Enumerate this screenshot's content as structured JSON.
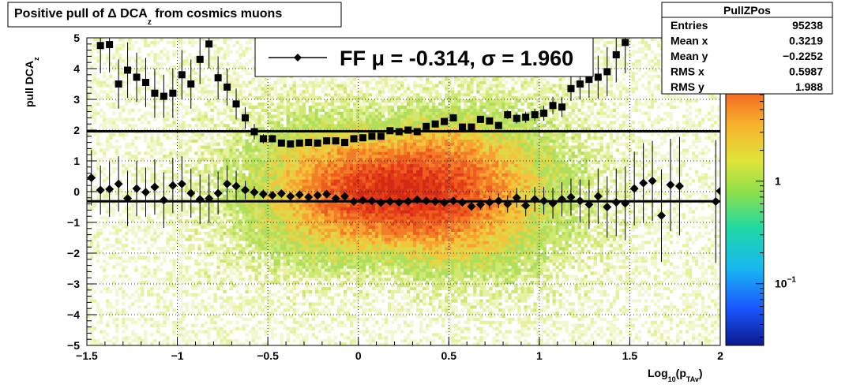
{
  "chart_data": {
    "type": "heatmap",
    "title": "Positive pull of Δ DCA",
    "title_sub": "z",
    "title_suffix": " from cosmics muons",
    "xlabel": "Log",
    "xlabel_sub1": "10",
    "xlabel_paren": "(p",
    "xlabel_sub2": "TAv",
    "xlabel_close": ")",
    "ylabel": "pull DCA",
    "ylabel_sub": "z",
    "xlim": [
      -1.5,
      2
    ],
    "ylim": [
      -5,
      5
    ],
    "x_ticks": [
      {
        "v": -1.5,
        "label": "−1.5"
      },
      {
        "v": -1,
        "label": "−1"
      },
      {
        "v": -0.5,
        "label": "−0.5"
      },
      {
        "v": 0,
        "label": "0"
      },
      {
        "v": 0.5,
        "label": "0.5"
      },
      {
        "v": 1,
        "label": "1"
      },
      {
        "v": 1.5,
        "label": "1.5"
      },
      {
        "v": 2,
        "label": "2"
      }
    ],
    "y_ticks": [
      {
        "v": 5,
        "label": "5"
      },
      {
        "v": 4,
        "label": "4"
      },
      {
        "v": 3,
        "label": "3"
      },
      {
        "v": 2,
        "label": "2"
      },
      {
        "v": 1,
        "label": "1"
      },
      {
        "v": 0,
        "label": "0"
      },
      {
        "v": -1,
        "label": "−1"
      },
      {
        "v": -2,
        "label": "−2"
      },
      {
        "v": -3,
        "label": "−3"
      },
      {
        "v": -4,
        "label": "−4"
      },
      {
        "v": -5,
        "label": "−5"
      }
    ],
    "colorbar": {
      "scale": "log",
      "range": [
        0.025,
        25
      ],
      "tick_labels": [
        {
          "v": 1,
          "label": "1"
        },
        {
          "v": 0.1,
          "label": "10",
          "sup": "−1"
        }
      ]
    },
    "legend": {
      "text_main": "FF μ = -0.314, σ =   1.960",
      "placement": "top-center"
    },
    "stats_box": {
      "title": "PullZPos",
      "rows": [
        {
          "label": "Entries",
          "value": "95238"
        },
        {
          "label": "Mean x",
          "value": "0.3219"
        },
        {
          "label": "Mean y",
          "value": "−0.2252"
        },
        {
          "label": "RMS x",
          "value": "0.5987"
        },
        {
          "label": "RMS y",
          "value": "1.988"
        }
      ]
    },
    "fit_lines": [
      {
        "name": "mean",
        "y": -0.314
      },
      {
        "name": "sigma",
        "y": 1.96
      }
    ],
    "series": [
      {
        "name": "mean",
        "marker": "diamond",
        "points": [
          [
            -1.475,
            0.45,
            0.9
          ],
          [
            -1.425,
            0.05,
            0.8
          ],
          [
            -1.375,
            0.08,
            0.9
          ],
          [
            -1.325,
            0.25,
            0.9
          ],
          [
            -1.275,
            -0.22,
            0.9
          ],
          [
            -1.225,
            0.1,
            0.9
          ],
          [
            -1.175,
            -0.02,
            0.8
          ],
          [
            -1.125,
            0.15,
            0.9
          ],
          [
            -1.075,
            -0.28,
            0.9
          ],
          [
            -1.025,
            0.2,
            0.9
          ],
          [
            -0.975,
            0.25,
            0.9
          ],
          [
            -0.925,
            -0.05,
            0.8
          ],
          [
            -0.875,
            -0.25,
            0.8
          ],
          [
            -0.825,
            -0.22,
            0.8
          ],
          [
            -0.775,
            -0.05,
            0.7
          ],
          [
            -0.725,
            0.25,
            0.6
          ],
          [
            -0.675,
            0.18,
            0.5
          ],
          [
            -0.625,
            0.05,
            0.3
          ],
          [
            -0.575,
            -0.02,
            0.2
          ],
          [
            -0.525,
            -0.08,
            0.15
          ],
          [
            -0.475,
            -0.12,
            0.12
          ],
          [
            -0.425,
            -0.06,
            0.1
          ],
          [
            -0.375,
            -0.15,
            0.1
          ],
          [
            -0.325,
            -0.1,
            0.08
          ],
          [
            -0.275,
            -0.18,
            0.07
          ],
          [
            -0.225,
            -0.12,
            0.07
          ],
          [
            -0.175,
            -0.08,
            0.06
          ],
          [
            -0.125,
            -0.22,
            0.06
          ],
          [
            -0.075,
            -0.15,
            0.05
          ],
          [
            -0.025,
            -0.32,
            0.05
          ],
          [
            0.025,
            -0.28,
            0.05
          ],
          [
            0.075,
            -0.3,
            0.05
          ],
          [
            0.125,
            -0.36,
            0.05
          ],
          [
            0.175,
            -0.32,
            0.05
          ],
          [
            0.225,
            -0.35,
            0.05
          ],
          [
            0.275,
            -0.32,
            0.06
          ],
          [
            0.325,
            -0.26,
            0.06
          ],
          [
            0.375,
            -0.3,
            0.07
          ],
          [
            0.425,
            -0.32,
            0.08
          ],
          [
            0.475,
            -0.36,
            0.09
          ],
          [
            0.525,
            -0.3,
            0.1
          ],
          [
            0.575,
            -0.35,
            0.12
          ],
          [
            0.625,
            -0.48,
            0.14
          ],
          [
            0.675,
            -0.42,
            0.16
          ],
          [
            0.725,
            -0.35,
            0.2
          ],
          [
            0.775,
            -0.3,
            0.24
          ],
          [
            0.825,
            -0.4,
            0.28
          ],
          [
            0.875,
            -0.2,
            0.32
          ],
          [
            0.925,
            -0.45,
            0.35
          ],
          [
            0.975,
            -0.25,
            0.4
          ],
          [
            1.025,
            -0.3,
            0.45
          ],
          [
            1.075,
            -0.38,
            0.5
          ],
          [
            1.125,
            -0.25,
            0.55
          ],
          [
            1.175,
            -0.18,
            0.6
          ],
          [
            1.225,
            -0.3,
            0.7
          ],
          [
            1.275,
            -0.42,
            0.8
          ],
          [
            1.325,
            -0.15,
            0.9
          ],
          [
            1.375,
            -0.5,
            1.0
          ],
          [
            1.425,
            -0.35,
            1.1
          ],
          [
            1.475,
            -0.38,
            1.2
          ],
          [
            1.525,
            0.1,
            1.2
          ],
          [
            1.575,
            0.28,
            1.3
          ],
          [
            1.625,
            0.35,
            1.3
          ],
          [
            1.675,
            -0.78,
            1.5
          ],
          [
            1.725,
            0.22,
            1.5
          ],
          [
            1.775,
            0.18,
            1.6
          ],
          [
            1.975,
            -0.32,
            2.0
          ],
          [
            2.0,
            0.02,
            2.5
          ]
        ]
      },
      {
        "name": "sigma",
        "marker": "square",
        "points": [
          [
            -1.425,
            4.75,
            0.9
          ],
          [
            -1.375,
            4.78,
            0.9
          ],
          [
            -1.325,
            3.5,
            0.8
          ],
          [
            -1.275,
            3.95,
            0.9
          ],
          [
            -1.225,
            3.72,
            0.8
          ],
          [
            -1.175,
            3.55,
            0.8
          ],
          [
            -1.125,
            3.2,
            0.8
          ],
          [
            -1.075,
            3.1,
            0.7
          ],
          [
            -1.025,
            3.2,
            0.8
          ],
          [
            -0.975,
            3.8,
            0.8
          ],
          [
            -0.925,
            3.5,
            0.8
          ],
          [
            -0.875,
            4.3,
            0.8
          ],
          [
            -0.825,
            4.8,
            0.8
          ],
          [
            -0.775,
            3.7,
            0.7
          ],
          [
            -0.725,
            3.4,
            0.6
          ],
          [
            -0.675,
            2.85,
            0.5
          ],
          [
            -0.625,
            2.4,
            0.35
          ],
          [
            -0.575,
            1.95,
            0.25
          ],
          [
            -0.525,
            1.72,
            0.15
          ],
          [
            -0.475,
            1.72,
            0.12
          ],
          [
            -0.425,
            1.58,
            0.1
          ],
          [
            -0.375,
            1.55,
            0.08
          ],
          [
            -0.325,
            1.58,
            0.07
          ],
          [
            -0.275,
            1.6,
            0.06
          ],
          [
            -0.225,
            1.58,
            0.06
          ],
          [
            -0.175,
            1.65,
            0.05
          ],
          [
            -0.125,
            1.65,
            0.05
          ],
          [
            -0.075,
            1.6,
            0.05
          ],
          [
            -0.025,
            1.72,
            0.05
          ],
          [
            0.025,
            1.75,
            0.04
          ],
          [
            0.075,
            1.8,
            0.04
          ],
          [
            0.125,
            1.8,
            0.04
          ],
          [
            0.175,
            1.98,
            0.04
          ],
          [
            0.225,
            1.95,
            0.04
          ],
          [
            0.275,
            2.0,
            0.04
          ],
          [
            0.325,
            1.95,
            0.05
          ],
          [
            0.375,
            2.12,
            0.05
          ],
          [
            0.425,
            2.2,
            0.05
          ],
          [
            0.475,
            2.28,
            0.06
          ],
          [
            0.525,
            2.4,
            0.06
          ],
          [
            0.575,
            2.1,
            0.07
          ],
          [
            0.625,
            2.1,
            0.08
          ],
          [
            0.675,
            2.35,
            0.09
          ],
          [
            0.725,
            2.3,
            0.1
          ],
          [
            0.775,
            2.15,
            0.12
          ],
          [
            0.825,
            2.5,
            0.14
          ],
          [
            0.875,
            2.38,
            0.16
          ],
          [
            0.925,
            2.42,
            0.18
          ],
          [
            0.975,
            2.5,
            0.2
          ],
          [
            1.025,
            2.55,
            0.24
          ],
          [
            1.075,
            2.8,
            0.28
          ],
          [
            1.125,
            2.75,
            0.32
          ],
          [
            1.175,
            3.35,
            0.4
          ],
          [
            1.225,
            3.5,
            0.5
          ],
          [
            1.275,
            3.65,
            0.6
          ],
          [
            1.325,
            3.72,
            0.7
          ],
          [
            1.375,
            3.9,
            0.8
          ],
          [
            1.425,
            4.45,
            0.9
          ],
          [
            1.475,
            4.85,
            1.0
          ]
        ]
      }
    ]
  }
}
